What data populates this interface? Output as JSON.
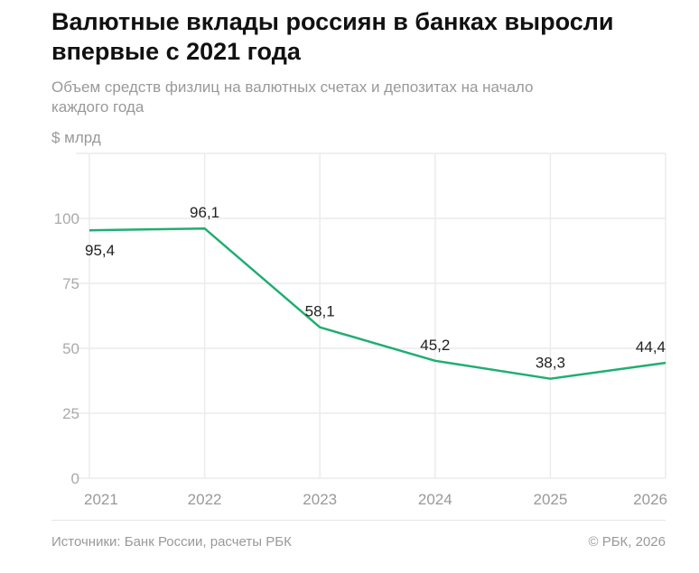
{
  "title": "Валютные вклады россиян в банках выросли впервые с 2021 года",
  "subtitle": "Объем средств физлиц на валютных счетах и депозитах на начало каждого года",
  "source": "Источники: Банк России, расчеты РБК",
  "copyright": "© РБК, 2026",
  "chart_data": {
    "type": "line",
    "ylabel": "$ млрд",
    "categories": [
      "2021",
      "2022",
      "2023",
      "2024",
      "2025",
      "2026"
    ],
    "values": [
      95.4,
      96.1,
      58.1,
      45.2,
      38.3,
      44.4
    ],
    "data_labels": [
      "95,4",
      "96,1",
      "58,1",
      "45,2",
      "38,3",
      "44,4"
    ],
    "yticks": [
      0,
      25,
      50,
      75,
      100
    ],
    "ylim": [
      0,
      125
    ],
    "grid": true,
    "line_color": "#1fae72"
  }
}
